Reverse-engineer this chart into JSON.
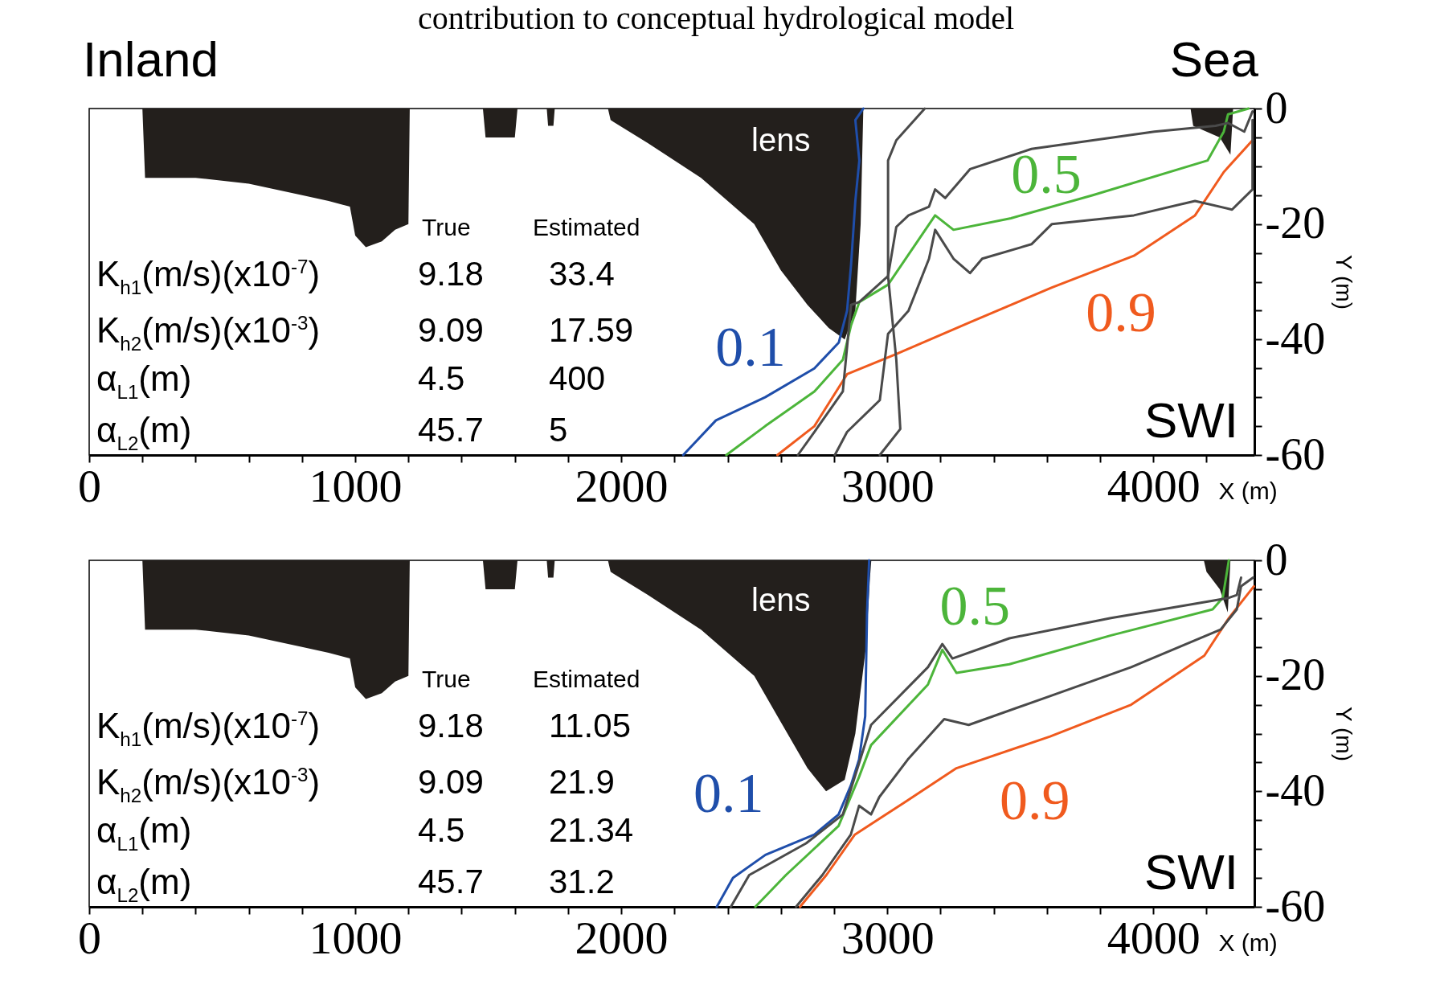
{
  "chart_data": [
    {
      "type": "line",
      "title": "contribution to conceptual hydrological model",
      "xlabel": "X (m)",
      "ylabel": "Y (m)",
      "xlim": [
        0,
        4380
      ],
      "ylim": [
        -60,
        0
      ],
      "xticks": [
        0,
        {
          "value": 200,
          "label": null
        },
        {
          "value": 400,
          "label": null
        },
        {
          "value": 600,
          "label": null
        },
        {
          "value": 800,
          "label": null
        },
        1000,
        {
          "value": 1200,
          "label": null
        },
        {
          "value": 1400,
          "label": null
        },
        {
          "value": 1600,
          "label": null
        },
        {
          "value": 1800,
          "label": null
        },
        2000,
        {
          "value": 2200,
          "label": null
        },
        {
          "value": 2400,
          "label": null
        },
        {
          "value": 2600,
          "label": null
        },
        {
          "value": 2800,
          "label": null
        },
        3000,
        {
          "value": 3200,
          "label": null
        },
        {
          "value": 3400,
          "label": null
        },
        {
          "value": 3600,
          "label": null
        },
        {
          "value": 3800,
          "label": null
        },
        4000,
        {
          "value": 4200,
          "label": null
        }
      ],
      "yticks": [
        0,
        {
          "value": -5,
          "label": null
        },
        {
          "value": -10,
          "label": null
        },
        {
          "value": -15,
          "label": null
        },
        -20,
        {
          "value": -25,
          "label": null
        },
        {
          "value": -30,
          "label": null
        },
        {
          "value": -35,
          "label": null
        },
        -40,
        {
          "value": -45,
          "label": null
        },
        {
          "value": -50,
          "label": null
        },
        {
          "value": -55,
          "label": null
        },
        -60
      ],
      "annotations": [
        "SWI",
        "True",
        "Estimated",
        "K$_{h1}$(m/s)(x10$^{-7}$)",
        "9.18",
        "33.4",
        "K$_{h2}$(m/s)(x10$^{-3}$)",
        "9.09",
        "17.59",
        "α$_{L1}$(m)",
        "4.5",
        "400",
        "α$_{L2}$(m)",
        "45.7",
        "5",
        "Inland",
        "Sea"
      ],
      "series": [
        {
          "type": "area",
          "name": "lens",
          "color": "#231f1c",
          "x": [
            200,
            210,
            400,
            600,
            800,
            900,
            980,
            1000,
            1040,
            1100,
            1150,
            1200,
            1205,
            1480,
            1490,
            1600,
            1610,
            1720,
            1725,
            1745,
            1750,
            1950,
            1960,
            2100,
            2300,
            2500,
            2600,
            2700,
            2780,
            2840,
            2880,
            2900,
            2910,
            4140,
            4150,
            4250,
            4290,
            4300
          ],
          "values": [
            0,
            -12,
            -12,
            -13,
            -15,
            -16,
            -17,
            -22,
            -24,
            -23,
            -21,
            -20,
            0,
            0,
            -5,
            -5,
            0,
            0,
            -3,
            -3,
            0,
            0,
            -2,
            -6,
            -12,
            -20,
            -28,
            -34,
            -38,
            -40,
            -35,
            -20,
            0,
            0,
            -3,
            -5,
            -8,
            0
          ]
        },
        {
          "name": "0.1",
          "color": "#1f4eaa",
          "x": [
            2233,
            2356,
            2541,
            2726,
            2818,
            2849,
            2864,
            2880,
            2895,
            2880,
            2910
          ],
          "values": [
            -60,
            -54,
            -50,
            -45,
            -40.5,
            -35,
            -27,
            -16,
            -9,
            -2,
            0
          ]
        },
        {
          "name": "0.5",
          "color": "#4cb53a",
          "x": [
            2395,
            2541,
            2726,
            2833,
            2864,
            2895,
            3003,
            3180,
            3249,
            3465,
            3773,
            4204,
            4265,
            4281,
            4358
          ],
          "values": [
            -60,
            -55,
            -49,
            -43.5,
            -37.5,
            -33.5,
            -30.5,
            -18.5,
            -21,
            -19,
            -15,
            -9,
            -4,
            -1,
            0
          ]
        },
        {
          "name": "0.9",
          "color": "#f05a1e",
          "x": [
            2587,
            2726,
            2849,
            3034,
            3311,
            3619,
            3927,
            4157,
            4265,
            4373
          ],
          "values": [
            -60,
            -55,
            -46,
            -42.5,
            -37,
            -31,
            -25.5,
            -18.5,
            -11,
            -5.5
          ]
        },
        {
          "color": "#4a4a4a",
          "x": [
            2664,
            2726,
            2833,
            2864,
            2895,
            3003,
            3034,
            3080,
            3157,
            3180,
            3218,
            3311,
            3542,
            3773,
            4004,
            4234,
            4281,
            4342,
            4373
          ],
          "values": [
            -60,
            -56,
            -49,
            -34,
            -33.5,
            -29,
            -20.5,
            -18.5,
            -17,
            -14,
            -15.5,
            -10.5,
            -7,
            -5.5,
            -4,
            -3,
            -2.5,
            -4,
            -0.5
          ]
        },
        {
          "color": "#4a4a4a",
          "x": [
            2803,
            2849,
            2972,
            3003,
            3080,
            3157,
            3180,
            3249,
            3311,
            3357,
            3542,
            3619,
            3927,
            4157,
            4296,
            4373,
            4373
          ],
          "values": [
            -60,
            -56,
            -50.5,
            -39,
            -35,
            -26,
            -21,
            -26,
            -28.5,
            -26,
            -23.5,
            -20,
            -18.5,
            -16,
            -17.5,
            -14,
            -2
          ]
        },
        {
          "color": "#4a4a4a",
          "x": [
            2972,
            3049,
            3034,
            3003,
            3003,
            3034,
            3141
          ],
          "values": [
            -60,
            -55.5,
            -43.5,
            -29,
            -9,
            -5.5,
            0
          ]
        }
      ]
    },
    {
      "type": "line",
      "xlabel": "X (m)",
      "ylabel": "Y (m)",
      "xlim": [
        0,
        4380
      ],
      "ylim": [
        -60,
        0
      ],
      "xticks": [
        0,
        {
          "value": 200,
          "label": null
        },
        {
          "value": 400,
          "label": null
        },
        {
          "value": 600,
          "label": null
        },
        {
          "value": 800,
          "label": null
        },
        1000,
        {
          "value": 1200,
          "label": null
        },
        {
          "value": 1400,
          "label": null
        },
        {
          "value": 1600,
          "label": null
        },
        {
          "value": 1800,
          "label": null
        },
        2000,
        {
          "value": 2200,
          "label": null
        },
        {
          "value": 2400,
          "label": null
        },
        {
          "value": 2600,
          "label": null
        },
        {
          "value": 2800,
          "label": null
        },
        3000,
        {
          "value": 3200,
          "label": null
        },
        {
          "value": 3400,
          "label": null
        },
        {
          "value": 3600,
          "label": null
        },
        {
          "value": 3800,
          "label": null
        },
        4000,
        {
          "value": 4200,
          "label": null
        }
      ],
      "yticks": [
        0,
        {
          "value": -5,
          "label": null
        },
        {
          "value": -10,
          "label": null
        },
        {
          "value": -15,
          "label": null
        },
        -20,
        {
          "value": -25,
          "label": null
        },
        {
          "value": -30,
          "label": null
        },
        {
          "value": -35,
          "label": null
        },
        -40,
        {
          "value": -45,
          "label": null
        },
        {
          "value": -50,
          "label": null
        },
        {
          "value": -55,
          "label": null
        },
        -60
      ],
      "annotations": [
        "SWI",
        "True",
        "Estimated",
        "K$_{h1}$(m/s)(x10$^{-7}$)",
        "9.18",
        "11.05",
        "K$_{h2}$(m/s)(x10$^{-3}$)",
        "9.09",
        "21.9",
        "α$_{L1}$(m)",
        "4.5",
        "21.34",
        "α$_{L2}$(m)",
        "45.7",
        "31.2"
      ],
      "series": [
        {
          "type": "area",
          "name": "lens",
          "color": "#231f1c",
          "x": [
            200,
            210,
            400,
            600,
            800,
            900,
            980,
            1000,
            1040,
            1100,
            1150,
            1200,
            1205,
            1480,
            1490,
            1600,
            1610,
            1720,
            1725,
            1745,
            1750,
            1950,
            1960,
            2100,
            2300,
            2500,
            2600,
            2700,
            2770,
            2840,
            2880,
            2920,
            2935,
            2940,
            4190,
            4200,
            4250,
            4280,
            4290
          ],
          "values": [
            0,
            -12,
            -12,
            -13,
            -15,
            -16,
            -17,
            -22,
            -24,
            -23,
            -21,
            -20,
            0,
            0,
            -5,
            -5,
            0,
            0,
            -3,
            -3,
            0,
            0,
            -2,
            -6,
            -12,
            -20,
            -28,
            -36,
            -40,
            -38,
            -30,
            -15,
            -3,
            0,
            0,
            -2,
            -5,
            -9,
            0
          ]
        },
        {
          "name": "0.1",
          "color": "#1f4eaa",
          "x": [
            2359,
            2420,
            2542,
            2726,
            2817,
            2863,
            2894,
            2917,
            2924,
            2932
          ],
          "values": [
            -60,
            -55,
            -51,
            -47.5,
            -44,
            -39,
            -34.5,
            -27,
            -9,
            0
          ]
        },
        {
          "name": "0.5",
          "color": "#4cb53a",
          "x": [
            2504,
            2619,
            2817,
            2894,
            2939,
            3153,
            3207,
            3260,
            3459,
            3841,
            4223,
            4261,
            4284
          ],
          "values": [
            -60,
            -54.5,
            -46,
            -37.5,
            -32,
            -21.5,
            -15.5,
            -19.5,
            -18,
            -13,
            -8.5,
            -6.5,
            0
          ]
        },
        {
          "name": "0.9",
          "color": "#f05a1e",
          "x": [
            2672,
            2771,
            2878,
            3062,
            3260,
            3612,
            3917,
            4192,
            4284,
            4378
          ],
          "values": [
            -60,
            -54.5,
            -47.5,
            -42,
            -36,
            -30.5,
            -25,
            -16.5,
            -10,
            -4.5
          ]
        },
        {
          "color": "#4a4a4a",
          "x": [
            2412,
            2481,
            2695,
            2833,
            2878,
            2939,
            3153,
            3207,
            3245,
            3459,
            3841,
            4223,
            4284,
            4314,
            4330
          ],
          "values": [
            -60,
            -54.5,
            -49,
            -44,
            -37.5,
            -28.5,
            -18.5,
            -14.5,
            -17,
            -13.5,
            -10,
            -7,
            -6.5,
            -6,
            -3
          ]
        },
        {
          "color": "#4a4a4a",
          "x": [
            2657,
            2756,
            2863,
            2894,
            2939,
            2970,
            3077,
            3214,
            3306,
            3612,
            3917,
            4253,
            4314,
            4330,
            4375
          ],
          "values": [
            -60,
            -54.5,
            -47.5,
            -42.5,
            -44,
            -41,
            -34.5,
            -27.5,
            -28.5,
            -23.5,
            -18.5,
            -12,
            -8.5,
            -4.5,
            -3
          ]
        }
      ]
    }
  ]
}
